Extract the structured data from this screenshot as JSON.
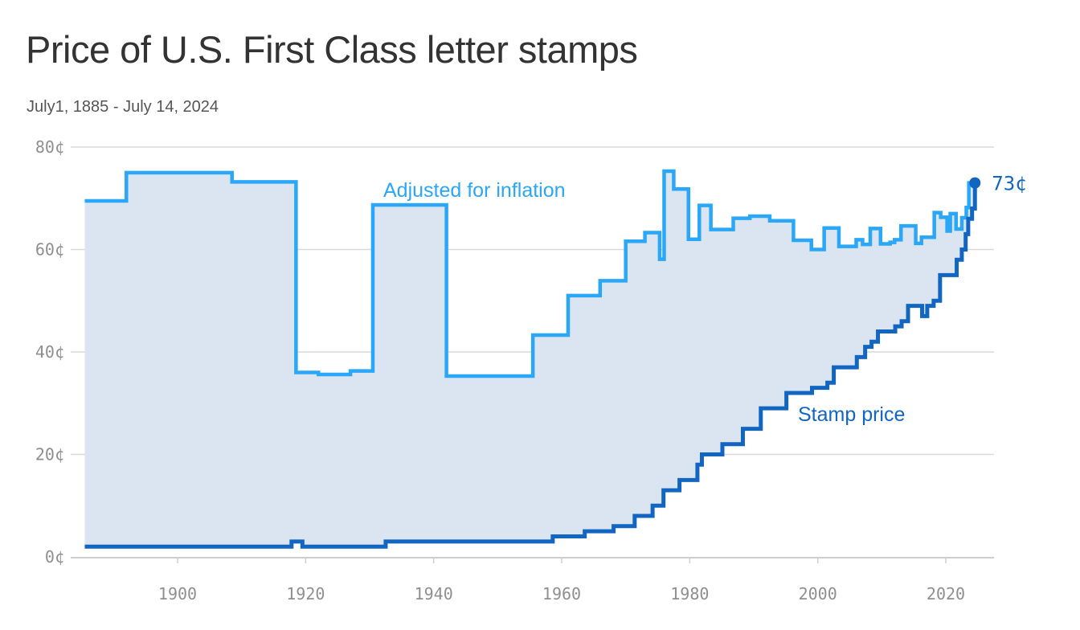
{
  "chart_data": {
    "type": "line",
    "step": true,
    "title": "Price of U.S. First Class letter stamps",
    "subtitle": "July1, 1885 - July 14, 2024",
    "xlim": [
      1885.5,
      2024.55
    ],
    "ylim": [
      0,
      80
    ],
    "x_ticks": [
      {
        "value": 1900,
        "label": "1900"
      },
      {
        "value": 1920,
        "label": "1920"
      },
      {
        "value": 1940,
        "label": "1940"
      },
      {
        "value": 1960,
        "label": "1960"
      },
      {
        "value": 1980,
        "label": "1980"
      },
      {
        "value": 2000,
        "label": "2000"
      },
      {
        "value": 2020,
        "label": "2020"
      }
    ],
    "y_ticks": [
      {
        "value": 0,
        "label": "0¢"
      },
      {
        "value": 20,
        "label": "20¢"
      },
      {
        "value": 40,
        "label": "40¢"
      },
      {
        "value": 60,
        "label": "60¢"
      },
      {
        "value": 80,
        "label": "80¢"
      }
    ],
    "grid": true,
    "area_fill": "#dae5f1",
    "series": [
      {
        "name": "Adjusted for inflation",
        "color": "#2aa7f8",
        "label_position": "above-1930s",
        "points": [
          [
            1885.5,
            69.5
          ],
          [
            1892,
            69.5
          ],
          [
            1892,
            75
          ],
          [
            1908.5,
            75
          ],
          [
            1908.5,
            73.2
          ],
          [
            1918.5,
            73.2
          ],
          [
            1918.5,
            36
          ],
          [
            1922,
            36
          ],
          [
            1922,
            35.6
          ],
          [
            1927,
            35.6
          ],
          [
            1927,
            36.3
          ],
          [
            1930.5,
            36.3
          ],
          [
            1930.5,
            68.7
          ],
          [
            1942,
            68.7
          ],
          [
            1942,
            35.3
          ],
          [
            1955.5,
            35.3
          ],
          [
            1955.5,
            43.3
          ],
          [
            1961,
            43.3
          ],
          [
            1961,
            51
          ],
          [
            1966,
            51
          ],
          [
            1966,
            53.9
          ],
          [
            1970,
            53.9
          ],
          [
            1970,
            61.6
          ],
          [
            1973,
            61.6
          ],
          [
            1973,
            63.3
          ],
          [
            1975.3,
            63.3
          ],
          [
            1975.3,
            58.1
          ],
          [
            1976,
            58.1
          ],
          [
            1976,
            75.3
          ],
          [
            1977.5,
            75.3
          ],
          [
            1977.5,
            71.8
          ],
          [
            1979.8,
            71.8
          ],
          [
            1979.8,
            62
          ],
          [
            1981.5,
            62
          ],
          [
            1981.5,
            68.6
          ],
          [
            1983.3,
            68.6
          ],
          [
            1983.3,
            63.9
          ],
          [
            1986.8,
            63.9
          ],
          [
            1986.8,
            66.1
          ],
          [
            1989.4,
            66.1
          ],
          [
            1989.4,
            66.5
          ],
          [
            1992.5,
            66.5
          ],
          [
            1992.5,
            65.6
          ],
          [
            1996.2,
            65.6
          ],
          [
            1996.2,
            61.8
          ],
          [
            1999,
            61.8
          ],
          [
            1999,
            60
          ],
          [
            2001,
            60
          ],
          [
            2001,
            64.2
          ],
          [
            2003.3,
            64.2
          ],
          [
            2003.3,
            60.6
          ],
          [
            2006,
            60.6
          ],
          [
            2006,
            61.9
          ],
          [
            2007,
            61.9
          ],
          [
            2007,
            61
          ],
          [
            2008.2,
            61
          ],
          [
            2008.2,
            64.1
          ],
          [
            2009.8,
            64.1
          ],
          [
            2009.8,
            61.1
          ],
          [
            2011.3,
            61.1
          ],
          [
            2011.3,
            61.4
          ],
          [
            2012,
            61.4
          ],
          [
            2012,
            61.9
          ],
          [
            2013,
            61.9
          ],
          [
            2013,
            64.6
          ],
          [
            2015.3,
            64.6
          ],
          [
            2015.3,
            61.2
          ],
          [
            2016.2,
            61.2
          ],
          [
            2016.2,
            62.4
          ],
          [
            2018.2,
            62.4
          ],
          [
            2018.2,
            67.2
          ],
          [
            2019.2,
            67.2
          ],
          [
            2019.2,
            66.3
          ],
          [
            2020.2,
            66.3
          ],
          [
            2020.2,
            63.6
          ],
          [
            2020.7,
            63.6
          ],
          [
            2020.7,
            67
          ],
          [
            2021.6,
            67
          ],
          [
            2021.6,
            64
          ],
          [
            2022.5,
            64
          ],
          [
            2022.5,
            66.2
          ],
          [
            2023.2,
            66.2
          ],
          [
            2023.2,
            68.2
          ],
          [
            2023.6,
            68.2
          ],
          [
            2023.6,
            73
          ],
          [
            2024.55,
            73
          ]
        ]
      },
      {
        "name": "Stamp price",
        "color": "#1266c2",
        "label_position": "below-1990s",
        "end_label": "73¢",
        "points": [
          [
            1885.5,
            2
          ],
          [
            1917.8,
            2
          ],
          [
            1917.8,
            3
          ],
          [
            1919.5,
            3
          ],
          [
            1919.5,
            2
          ],
          [
            1932.5,
            2
          ],
          [
            1932.5,
            3
          ],
          [
            1958.6,
            3
          ],
          [
            1958.6,
            4
          ],
          [
            1963.6,
            4
          ],
          [
            1963.6,
            5
          ],
          [
            1968.1,
            5
          ],
          [
            1968.1,
            6
          ],
          [
            1971.4,
            6
          ],
          [
            1971.4,
            8
          ],
          [
            1974.2,
            8
          ],
          [
            1974.2,
            10
          ],
          [
            1975.9,
            10
          ],
          [
            1975.9,
            13
          ],
          [
            1978.4,
            13
          ],
          [
            1978.4,
            15
          ],
          [
            1981.2,
            15
          ],
          [
            1981.2,
            18
          ],
          [
            1981.9,
            18
          ],
          [
            1981.9,
            20
          ],
          [
            1985.1,
            20
          ],
          [
            1985.1,
            22
          ],
          [
            1988.3,
            22
          ],
          [
            1988.3,
            25
          ],
          [
            1991.1,
            25
          ],
          [
            1991.1,
            29
          ],
          [
            1995.1,
            29
          ],
          [
            1995.1,
            32
          ],
          [
            1999.1,
            32
          ],
          [
            1999.1,
            33
          ],
          [
            2001.5,
            33
          ],
          [
            2001.5,
            34
          ],
          [
            2002.5,
            34
          ],
          [
            2002.5,
            37
          ],
          [
            2006.1,
            37
          ],
          [
            2006.1,
            39
          ],
          [
            2007.4,
            39
          ],
          [
            2007.4,
            41
          ],
          [
            2008.4,
            41
          ],
          [
            2008.4,
            42
          ],
          [
            2009.4,
            42
          ],
          [
            2009.4,
            44
          ],
          [
            2012.1,
            44
          ],
          [
            2012.1,
            45
          ],
          [
            2013.1,
            45
          ],
          [
            2013.1,
            46
          ],
          [
            2014.1,
            46
          ],
          [
            2014.1,
            49
          ],
          [
            2016.3,
            49
          ],
          [
            2016.3,
            47
          ],
          [
            2017.1,
            47
          ],
          [
            2017.1,
            49
          ],
          [
            2018.1,
            49
          ],
          [
            2018.1,
            50
          ],
          [
            2019.1,
            50
          ],
          [
            2019.1,
            55
          ],
          [
            2021.7,
            55
          ],
          [
            2021.7,
            58
          ],
          [
            2022.5,
            58
          ],
          [
            2022.5,
            60
          ],
          [
            2023.1,
            60
          ],
          [
            2023.1,
            63
          ],
          [
            2023.5,
            63
          ],
          [
            2023.5,
            66
          ],
          [
            2024.1,
            66
          ],
          [
            2024.1,
            68
          ],
          [
            2024.55,
            68
          ],
          [
            2024.55,
            73
          ]
        ]
      }
    ]
  }
}
